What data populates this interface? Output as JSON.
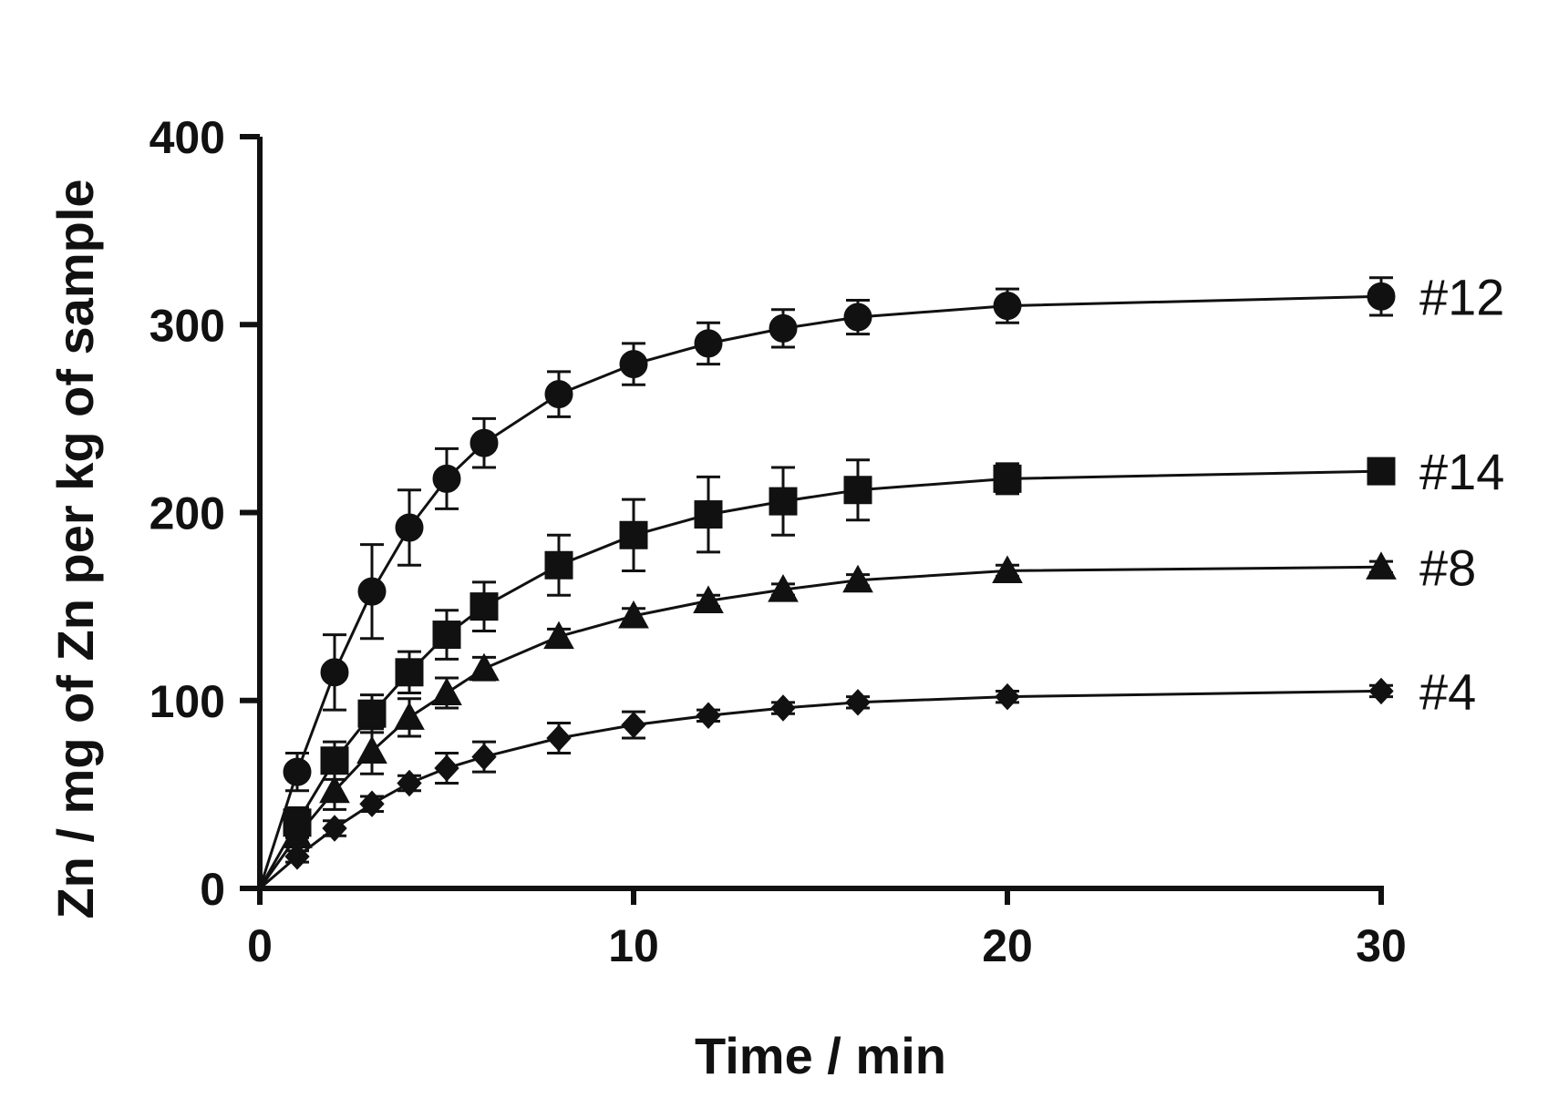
{
  "chart_data": {
    "type": "line",
    "title": "",
    "xlabel": "Time / min",
    "ylabel": "Zn / mg of Zn per kg of sample",
    "xlim": [
      0,
      30
    ],
    "ylim": [
      0,
      400
    ],
    "xticks": [
      0,
      10,
      20,
      30
    ],
    "yticks": [
      0,
      100,
      200,
      300,
      400
    ],
    "grid": false,
    "legend": "none",
    "x": [
      0,
      1,
      2,
      3,
      4,
      5,
      6,
      8,
      10,
      12,
      14,
      16,
      20,
      30
    ],
    "series": [
      {
        "name": "#12",
        "marker": "circle",
        "values": [
          0,
          62,
          115,
          158,
          192,
          218,
          237,
          263,
          279,
          290,
          298,
          304,
          310,
          315
        ],
        "errors": [
          0,
          10,
          20,
          25,
          20,
          16,
          13,
          12,
          11,
          11,
          10,
          9,
          9,
          10
        ]
      },
      {
        "name": "#14",
        "marker": "square",
        "values": [
          0,
          35,
          68,
          93,
          115,
          135,
          150,
          172,
          188,
          199,
          206,
          212,
          218,
          222
        ],
        "errors": [
          0,
          8,
          10,
          10,
          11,
          13,
          13,
          16,
          19,
          20,
          18,
          16,
          8,
          5
        ]
      },
      {
        "name": "#8",
        "marker": "triangle",
        "values": [
          0,
          28,
          52,
          73,
          91,
          104,
          117,
          134,
          145,
          153,
          159,
          164,
          169,
          171
        ],
        "errors": [
          0,
          6,
          10,
          12,
          10,
          8,
          6,
          4,
          4,
          3,
          3,
          3,
          3,
          3
        ]
      },
      {
        "name": "#4",
        "marker": "diamond",
        "values": [
          0,
          17,
          32,
          45,
          56,
          64,
          70,
          80,
          87,
          92,
          96,
          99,
          102,
          105
        ],
        "errors": [
          0,
          3,
          4,
          4,
          4,
          8,
          8,
          8,
          7,
          3,
          3,
          3,
          3,
          3
        ]
      }
    ]
  }
}
